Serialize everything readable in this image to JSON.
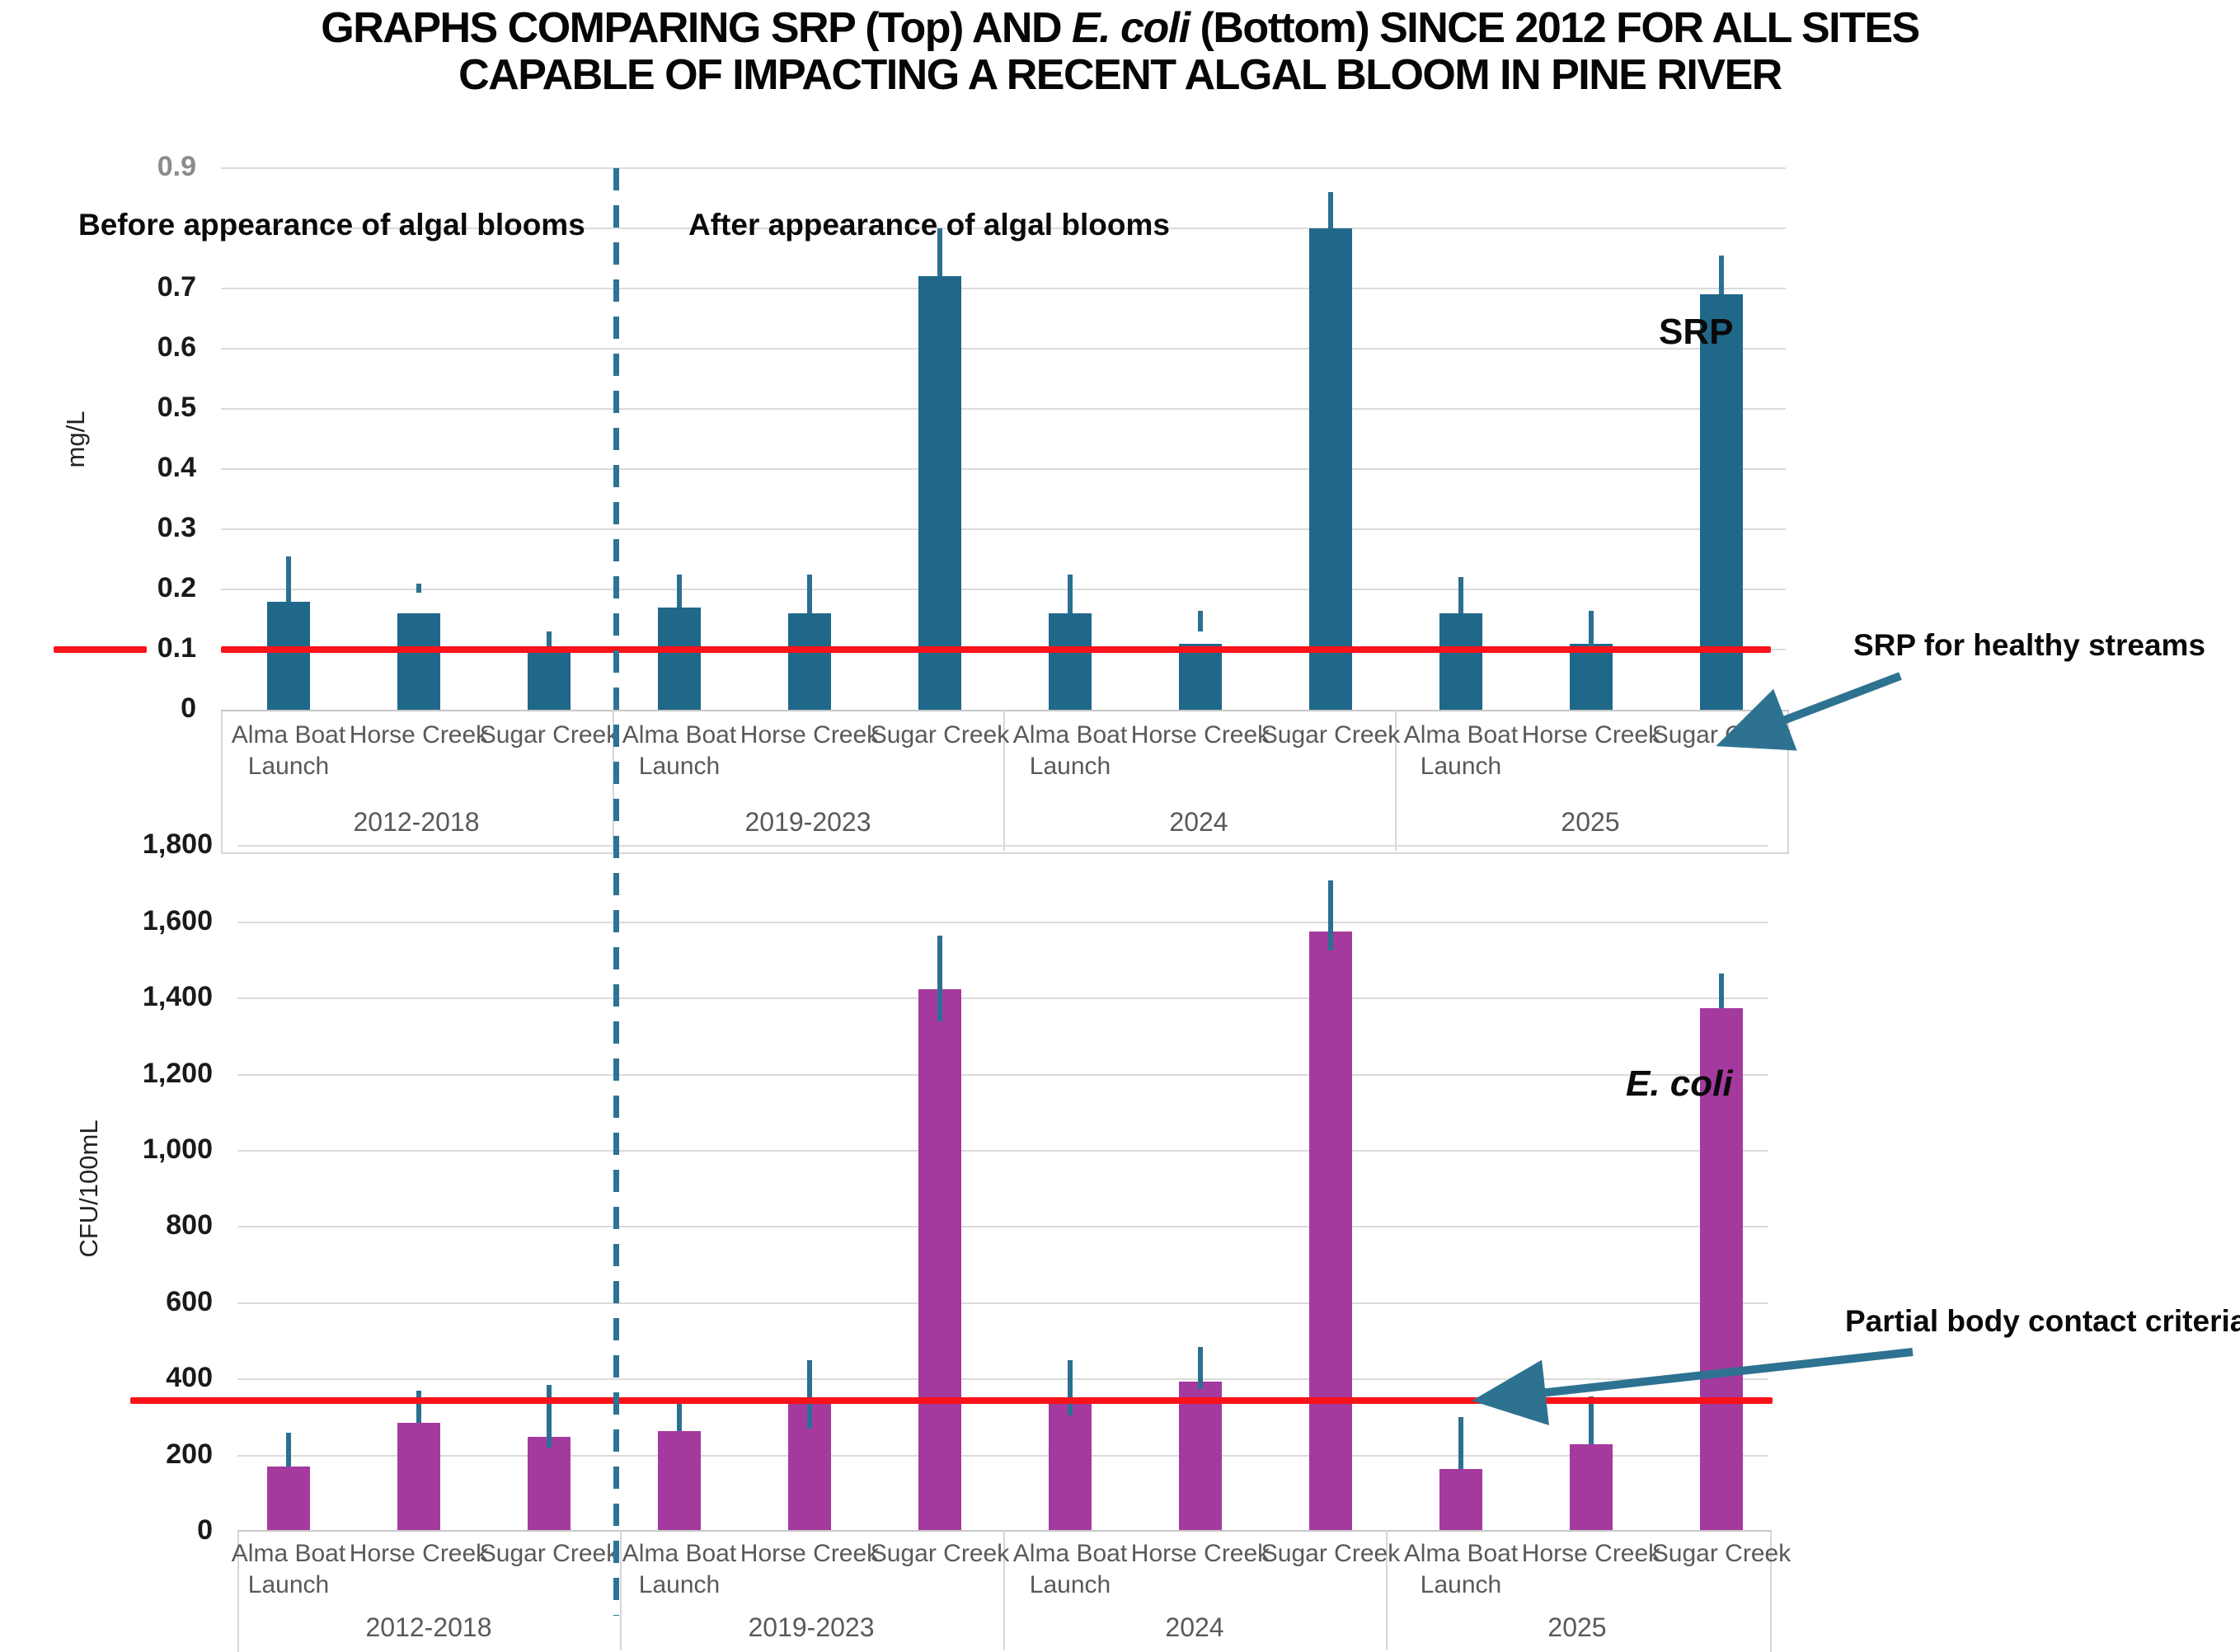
{
  "title": {
    "line1_pre": "GRAPHS COMPARING SRP (Top) AND ",
    "line1_italic": "E. coli",
    "line1_post": " (Bottom) SINCE 2012 FOR ALL SITES",
    "line2": "CAPABLE OF IMPACTING A RECENT ALGAL BLOOM IN PINE RIVER"
  },
  "colors": {
    "srp_bar": "#20688a",
    "ecoli_bar": "#a53a9e",
    "error_bar": "#2c7091",
    "divider_dash": "#2d7494",
    "reference_line": "#f8121a",
    "gridline": "#dbdbdb",
    "axis_text": "#1a1a1a",
    "site_text": "#595959"
  },
  "chart_data": [
    {
      "type": "bar",
      "series_label": "SRP",
      "ylabel": "mg/L",
      "ylim": [
        0,
        0.9
      ],
      "yticks": [
        0.9,
        0.8,
        0.7,
        0.6,
        0.5,
        0.4,
        0.3,
        0.2,
        0.1,
        0
      ],
      "ytick_labels": [
        "0.9",
        "",
        "0.7",
        "0.6",
        "0.5",
        "0.4",
        "0.3",
        "0.2",
        "0.1",
        "0"
      ],
      "muted_tick_label": "0.9",
      "grid": true,
      "legend_position": "inside-right",
      "groups": [
        "2012-2018",
        "2019-2023",
        "2024",
        "2025"
      ],
      "sites": [
        "Alma Boat Launch",
        "Horse Creek",
        "Sugar Creek"
      ],
      "values": [
        [
          0.18,
          0.16,
          0.1
        ],
        [
          0.17,
          0.16,
          0.72
        ],
        [
          0.16,
          0.11,
          0.8
        ],
        [
          0.16,
          0.11,
          0.69
        ]
      ],
      "error_bars": [
        [
          [
            0.18,
            0.255
          ],
          [
            0.195,
            0.21
          ],
          [
            0.1,
            0.13
          ]
        ],
        [
          [
            0.17,
            0.225
          ],
          [
            0.16,
            0.225
          ],
          [
            0.72,
            0.8
          ]
        ],
        [
          [
            0.16,
            0.225
          ],
          [
            0.13,
            0.165
          ],
          [
            0.8,
            0.86
          ]
        ],
        [
          [
            0.16,
            0.22
          ],
          [
            0.1,
            0.165
          ],
          [
            0.69,
            0.755
          ]
        ]
      ],
      "reference_line": {
        "value": 0.1,
        "label": "SRP for healthy streams"
      },
      "region_before": "Before appearance of algal blooms",
      "region_after": "After appearance of algal blooms"
    },
    {
      "type": "bar",
      "series_label": "E. coli",
      "ylabel": "CFU/100mL",
      "ylim": [
        0,
        1800
      ],
      "yticks": [
        1800,
        1600,
        1400,
        1200,
        1000,
        800,
        600,
        400,
        200,
        0
      ],
      "ytick_labels": [
        "1,800",
        "1,600",
        "1,400",
        "1,200",
        "1,000",
        "800",
        "600",
        "400",
        "200",
        "0"
      ],
      "muted_tick_label": "",
      "grid": true,
      "legend_position": "inside-right",
      "groups": [
        "2012-2018",
        "2019-2023",
        "2024",
        "2025"
      ],
      "sites": [
        "Alma Boat Launch",
        "Horse Creek",
        "Sugar Creek"
      ],
      "values": [
        [
          170,
          285,
          250
        ],
        [
          265,
          340,
          1425
        ],
        [
          340,
          395,
          1575
        ],
        [
          165,
          230,
          1375
        ]
      ],
      "error_bars": [
        [
          [
            170,
            260
          ],
          [
            285,
            370
          ],
          [
            220,
            385
          ]
        ],
        [
          [
            265,
            345
          ],
          [
            270,
            450
          ],
          [
            1340,
            1565
          ]
        ],
        [
          [
            305,
            450
          ],
          [
            375,
            485
          ],
          [
            1525,
            1710
          ]
        ],
        [
          [
            165,
            300
          ],
          [
            230,
            355
          ],
          [
            1375,
            1465
          ]
        ]
      ],
      "reference_line": {
        "value": 345,
        "label": "Partial body contact criteria"
      }
    }
  ]
}
